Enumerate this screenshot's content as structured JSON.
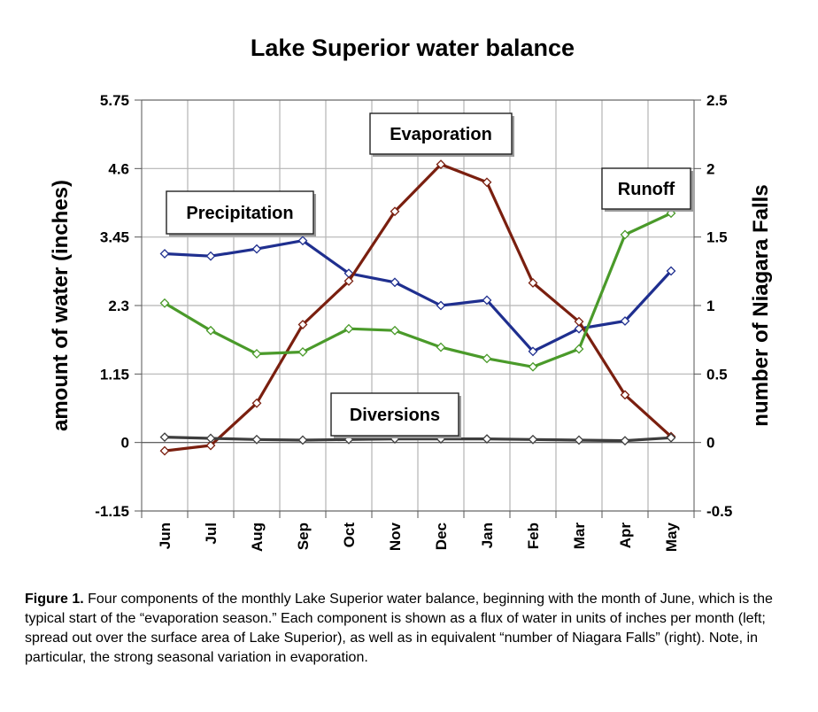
{
  "chart_data": {
    "type": "line",
    "title": "Lake Superior water balance",
    "ylabel_left": "amount of water (inches)",
    "ylabel_right": "number of Niagara Falls",
    "xlabel": "",
    "categories": [
      "Jun",
      "Jul",
      "Aug",
      "Sep",
      "Oct",
      "Nov",
      "Dec",
      "Jan",
      "Feb",
      "Mar",
      "Apr",
      "May"
    ],
    "yticks_left": [
      "5.75",
      "4.6",
      "3.45",
      "2.3",
      "1.15",
      "0",
      "-1.15"
    ],
    "yticks_right": [
      "2.5",
      "2",
      "1.5",
      "1",
      "0.5",
      "0",
      "-0.5"
    ],
    "ylim_left": [
      -1.15,
      5.75
    ],
    "ylim_right": [
      -0.5,
      2.5
    ],
    "grid": true,
    "series": [
      {
        "name": "Precipitation",
        "color": "#1f2f8f",
        "values": [
          3.17,
          3.13,
          3.25,
          3.39,
          2.84,
          2.69,
          2.3,
          2.39,
          1.53,
          1.91,
          2.04,
          2.88
        ]
      },
      {
        "name": "Evaporation",
        "color": "#7a1f0f",
        "values": [
          -0.14,
          -0.05,
          0.66,
          1.98,
          2.71,
          3.88,
          4.67,
          4.37,
          2.68,
          2.03,
          0.8,
          0.1
        ]
      },
      {
        "name": "Runoff",
        "color": "#4a9a2a",
        "values": [
          2.34,
          1.88,
          1.49,
          1.52,
          1.91,
          1.88,
          1.6,
          1.41,
          1.27,
          1.57,
          3.49,
          3.85
        ]
      },
      {
        "name": "Diversions",
        "color": "#3d3d3d",
        "values": [
          0.09,
          0.07,
          0.05,
          0.04,
          0.05,
          0.06,
          0.06,
          0.06,
          0.05,
          0.04,
          0.03,
          0.08
        ]
      }
    ]
  },
  "caption": {
    "label": "Figure 1.",
    "text": " Four components of the monthly Lake Superior water balance, beginning with the month of June, which is the typical start of the “evaporation season.” Each component is shown as a flux of water in units of inches per month (left; spread out over the surface area of Lake Superior), as well as in equivalent “number of Niagara Falls” (right). Note, in particular, the strong seasonal variation in evaporation."
  }
}
